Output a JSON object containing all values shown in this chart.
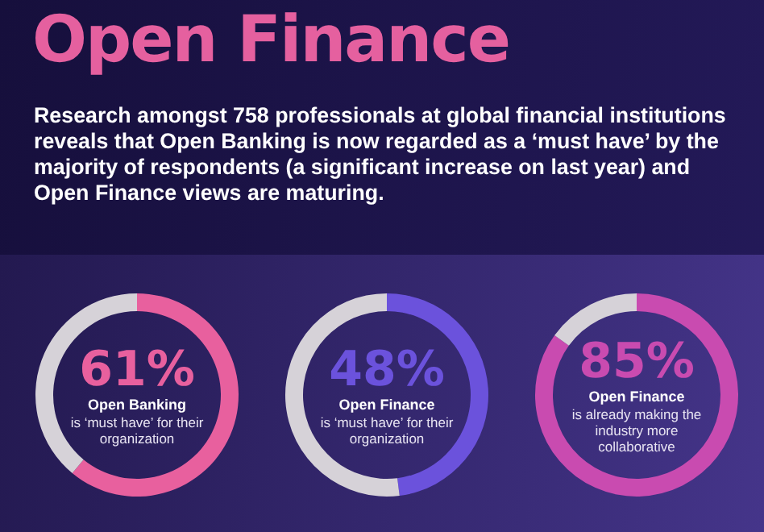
{
  "chart_data": [
    {
      "type": "other",
      "title": "Open Finance",
      "subtitle": "Research amongst 758 professionals at global financial institutions reveals that Open Banking is now regarded as a ‘must have’ by the majority of respondents (a significant increase on last year) and Open Finance views are maturing."
    },
    {
      "type": "donut",
      "title": "Open Banking",
      "subtitle": "is ‘must have’ for their organization",
      "categories": [
        null,
        null
      ],
      "values": [
        61,
        39
      ],
      "colors": [
        "#e8609e",
        "#d6d2d8"
      ],
      "value_labels": [
        "61%",
        null
      ]
    },
    {
      "type": "donut",
      "title": "Open Finance",
      "subtitle": "is ‘must have’ for their organization",
      "categories": [
        null,
        null
      ],
      "values": [
        48,
        52
      ],
      "colors": [
        "#6b52dc",
        "#d6d2d8"
      ],
      "value_labels": [
        "48%",
        null
      ]
    },
    {
      "type": "donut",
      "title": "Open Finance",
      "subtitle": "is already making the industry more collaborative",
      "categories": [
        null,
        null
      ],
      "values": [
        85,
        15
      ],
      "colors": [
        "#c94bb0",
        "#d6d2d8"
      ],
      "value_labels": [
        "85%",
        null
      ]
    }
  ]
}
